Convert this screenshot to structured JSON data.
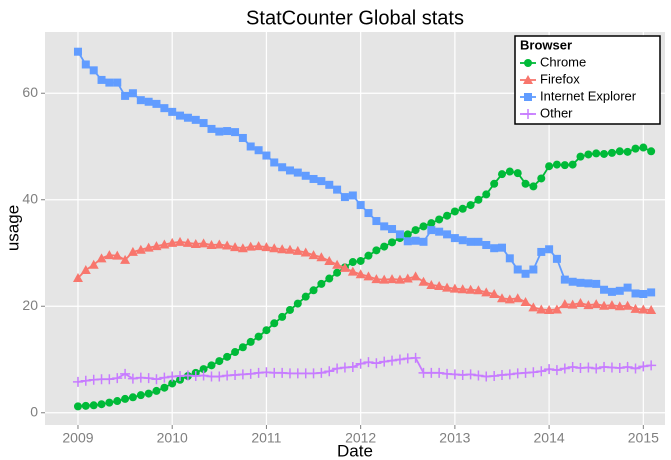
{
  "chart_data": {
    "type": "line",
    "title": "StatCounter Global stats",
    "x_label": "Date",
    "y_label": "usage",
    "legend_title": "Browser",
    "legend": "top-right",
    "grid": true,
    "x": [
      2009,
      2009.083,
      2009.167,
      2009.25,
      2009.333,
      2009.417,
      2009.5,
      2009.583,
      2009.667,
      2009.75,
      2009.833,
      2009.917,
      2010,
      2010.083,
      2010.167,
      2010.25,
      2010.333,
      2010.417,
      2010.5,
      2010.583,
      2010.667,
      2010.75,
      2010.833,
      2010.917,
      2011,
      2011.083,
      2011.167,
      2011.25,
      2011.333,
      2011.417,
      2011.5,
      2011.583,
      2011.667,
      2011.75,
      2011.833,
      2011.917,
      2012,
      2012.083,
      2012.167,
      2012.25,
      2012.333,
      2012.417,
      2012.5,
      2012.583,
      2012.667,
      2012.75,
      2012.833,
      2012.917,
      2013,
      2013.083,
      2013.167,
      2013.25,
      2013.333,
      2013.417,
      2013.5,
      2013.583,
      2013.667,
      2013.75,
      2013.833,
      2013.917,
      2014,
      2014.083,
      2014.167,
      2014.25,
      2014.333,
      2014.417,
      2014.5,
      2014.583,
      2014.667,
      2014.75,
      2014.833,
      2014.917,
      2015,
      2015.083
    ],
    "series": [
      {
        "name": "Chrome",
        "color": "#00BA38",
        "marker": "circle",
        "values": [
          1.2,
          1.3,
          1.4,
          1.6,
          1.9,
          2.2,
          2.6,
          2.9,
          3.3,
          3.6,
          4.1,
          4.7,
          5.5,
          6.2,
          6.9,
          7.5,
          8.2,
          8.9,
          9.7,
          10.5,
          11.4,
          12.3,
          13.3,
          14.3,
          15.5,
          16.8,
          18,
          19.3,
          20.5,
          21.8,
          23,
          24.2,
          25.2,
          26.3,
          27.3,
          28.3,
          28.5,
          29.5,
          30.5,
          31.2,
          32,
          32.8,
          33.5,
          34.3,
          35,
          35.6,
          36.3,
          37,
          37.8,
          38.3,
          39,
          40,
          41,
          43,
          44.8,
          45.3,
          45,
          43,
          42.5,
          44,
          46.3,
          46.6,
          46.5,
          46.6,
          48.1,
          48.5,
          48.7,
          48.6,
          48.8,
          49.1,
          49,
          49.6,
          49.8,
          49.1
        ]
      },
      {
        "name": "Firefox",
        "color": "#F8766D",
        "marker": "triangle",
        "values": [
          25.3,
          26.8,
          27.8,
          29,
          29.6,
          29.5,
          28.7,
          30.2,
          30.6,
          31,
          31.3,
          31.6,
          31.9,
          32.1,
          31.9,
          31.7,
          31.8,
          31.5,
          31.6,
          31.4,
          31.1,
          30.9,
          31.2,
          31.3,
          31.1,
          30.9,
          30.7,
          30.6,
          30.4,
          30.1,
          29.6,
          29.2,
          28.5,
          27.8,
          27.2,
          26.5,
          26,
          25.6,
          25.1,
          25,
          25.1,
          25,
          25.2,
          25.6,
          24.6,
          24,
          23.8,
          23.5,
          23.3,
          23.2,
          23.1,
          23,
          22.6,
          22.3,
          21.5,
          21.3,
          21.5,
          20.8,
          19.8,
          19.4,
          19.3,
          19.4,
          20.4,
          20.3,
          20.6,
          20.2,
          20.4,
          20.1,
          20.2,
          20,
          20.1,
          19.5,
          19.4,
          19.3
        ]
      },
      {
        "name": "Internet Explorer",
        "color": "#619CFF",
        "marker": "square",
        "values": [
          67.8,
          65.4,
          64.3,
          62.5,
          62,
          62,
          59.5,
          60,
          58.7,
          58.4,
          58,
          57.2,
          56.5,
          55.8,
          55.4,
          55,
          54.4,
          53.3,
          52.8,
          52.9,
          52.7,
          51.6,
          50,
          49.3,
          48.3,
          47,
          46.1,
          45.5,
          45.1,
          44.5,
          43.9,
          43.5,
          42.8,
          41.9,
          40.5,
          40.8,
          39,
          37.5,
          36,
          35,
          34.5,
          33.5,
          32.2,
          32.3,
          32.1,
          34.3,
          34,
          33.5,
          32.8,
          32.4,
          32.1,
          32.1,
          31.5,
          30.9,
          31,
          29,
          26.9,
          26.1,
          26.9,
          30.2,
          30.7,
          28.9,
          25,
          24.6,
          24.4,
          24.3,
          24.2,
          23.1,
          22.7,
          22.9,
          23.5,
          22.4,
          22.3,
          22.6
        ]
      },
      {
        "name": "Other",
        "color": "#C77CFF",
        "marker": "plus",
        "values": [
          5.8,
          6,
          6.2,
          6.3,
          6.3,
          6.5,
          7.3,
          6.4,
          6.6,
          6.5,
          6.3,
          6.6,
          6.8,
          6.9,
          7,
          6.9,
          7,
          6.8,
          6.8,
          7,
          7.1,
          7.2,
          7.3,
          7.5,
          7.6,
          7.5,
          7.5,
          7.4,
          7.4,
          7.4,
          7.4,
          7.5,
          7.8,
          8.3,
          8.5,
          8.6,
          9.2,
          9.5,
          9.3,
          9.6,
          9.8,
          10,
          10.2,
          10.3,
          7.5,
          7.5,
          7.5,
          7.3,
          7.2,
          7.1,
          7.2,
          7,
          6.8,
          6.9,
          7.1,
          7.2,
          7.4,
          7.5,
          7.6,
          7.8,
          8.2,
          8,
          8.3,
          8.6,
          8.4,
          8.5,
          8.3,
          8.6,
          8.5,
          8.4,
          8.6,
          8.3,
          8.7,
          8.9
        ]
      }
    ],
    "xlim": [
      2008.65,
      2015.23
    ],
    "xticks": [
      2009,
      2010,
      2011,
      2012,
      2013,
      2014,
      2015
    ],
    "ylim": [
      -2.3,
      71.5
    ],
    "yticks": [
      0,
      20,
      40,
      60
    ]
  }
}
